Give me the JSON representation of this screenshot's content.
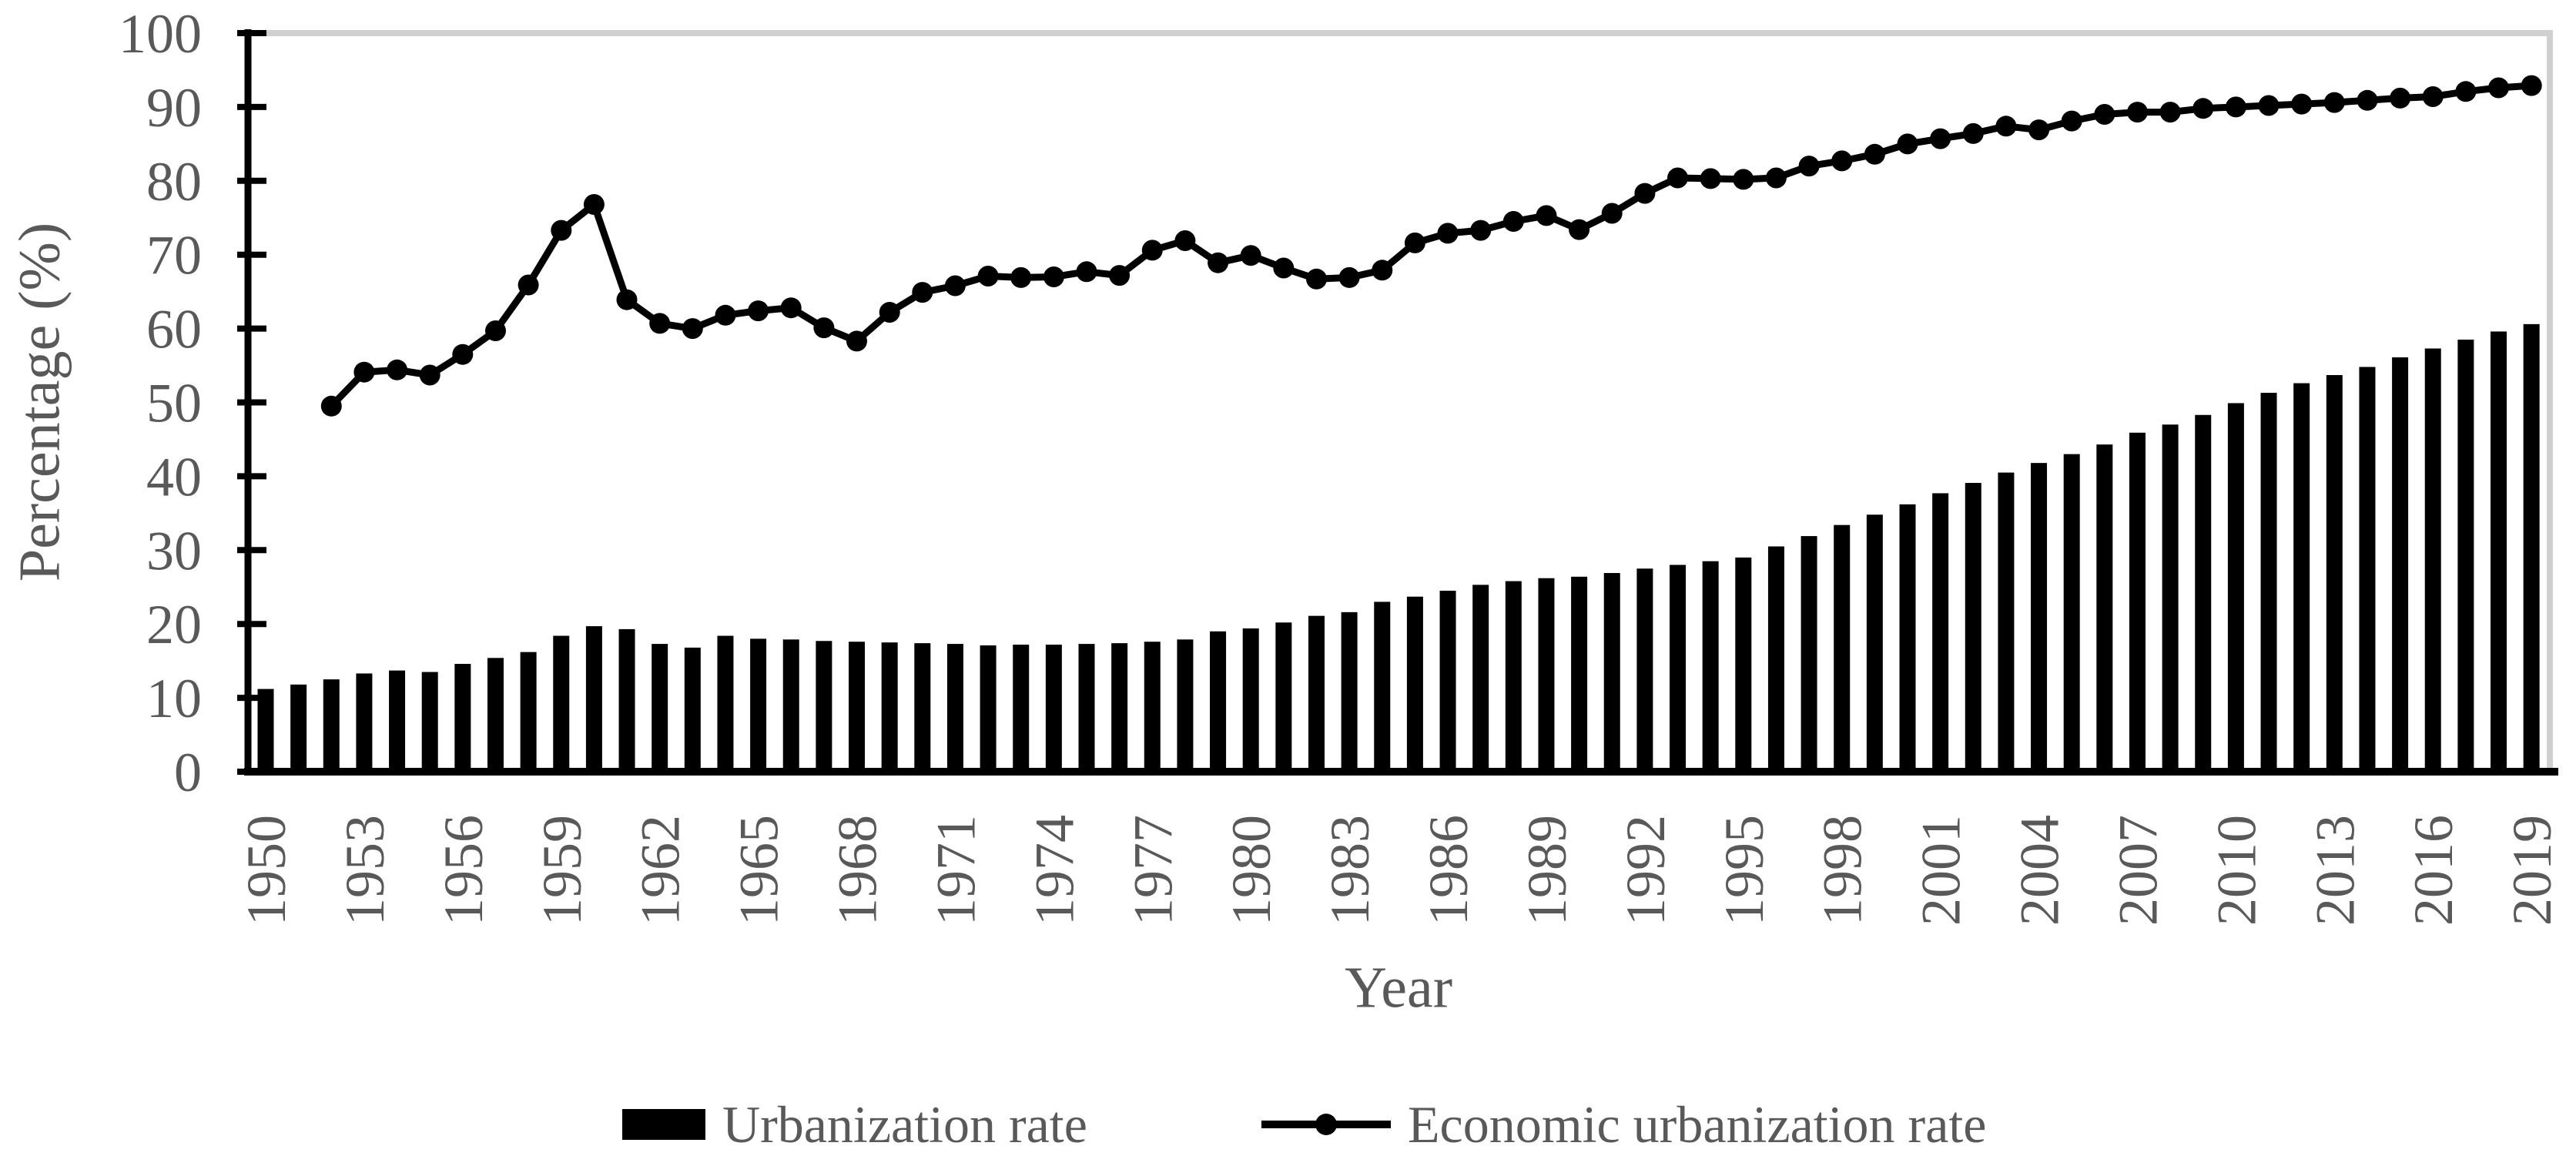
{
  "figure": {
    "background": "#ffffff"
  },
  "colors": {
    "series_bar": "#000000",
    "series_line": "#000000",
    "axis_line": "#000000",
    "tick_label_text": "#595959",
    "axis_title_text": "#595959",
    "plot_border": "#d0d0d0"
  },
  "chart_data": {
    "type": "bar",
    "combo": "bar+line",
    "title": "",
    "xlabel": "Year",
    "ylabel": "Percentage (%)",
    "ylim": [
      0,
      100
    ],
    "y_ticks": [
      0,
      10,
      20,
      30,
      40,
      50,
      60,
      70,
      80,
      90,
      100
    ],
    "grid": "off",
    "legend_position": "bottom",
    "plot_border_sides": "top-right",
    "categories": [
      1950,
      1951,
      1952,
      1953,
      1954,
      1955,
      1956,
      1957,
      1958,
      1959,
      1960,
      1961,
      1962,
      1963,
      1964,
      1965,
      1966,
      1967,
      1968,
      1969,
      1970,
      1971,
      1972,
      1973,
      1974,
      1975,
      1976,
      1977,
      1978,
      1979,
      1980,
      1981,
      1982,
      1983,
      1984,
      1985,
      1986,
      1987,
      1988,
      1989,
      1990,
      1991,
      1992,
      1993,
      1994,
      1995,
      1996,
      1997,
      1998,
      1999,
      2000,
      2001,
      2002,
      2003,
      2004,
      2005,
      2006,
      2007,
      2008,
      2009,
      2010,
      2011,
      2012,
      2013,
      2014,
      2015,
      2016,
      2017,
      2018,
      2019
    ],
    "x_tick_labels": [
      "1950",
      "1953",
      "1956",
      "1959",
      "1962",
      "1965",
      "1968",
      "1971",
      "1974",
      "1977",
      "1980",
      "1983",
      "1986",
      "1989",
      "1992",
      "1995",
      "1998",
      "2001",
      "2004",
      "2007",
      "2010",
      "2013",
      "2016",
      "2019"
    ],
    "series": [
      {
        "name": "Urbanization rate",
        "type": "bar",
        "color": "#000000",
        "values": [
          11.2,
          11.8,
          12.5,
          13.3,
          13.7,
          13.5,
          14.6,
          15.4,
          16.2,
          18.4,
          19.7,
          19.3,
          17.3,
          16.8,
          18.4,
          18.0,
          17.9,
          17.7,
          17.6,
          17.5,
          17.4,
          17.3,
          17.1,
          17.2,
          17.2,
          17.3,
          17.4,
          17.6,
          17.9,
          19.0,
          19.4,
          20.2,
          21.1,
          21.6,
          23.0,
          23.7,
          24.5,
          25.3,
          25.8,
          26.2,
          26.4,
          26.9,
          27.5,
          28.0,
          28.5,
          29.0,
          30.5,
          31.9,
          33.4,
          34.8,
          36.2,
          37.7,
          39.1,
          40.5,
          41.8,
          43.0,
          44.3,
          45.9,
          47.0,
          48.3,
          49.9,
          51.3,
          52.6,
          53.7,
          54.8,
          56.1,
          57.3,
          58.5,
          59.6,
          60.6
        ]
      },
      {
        "name": "Economic urbanization rate",
        "type": "line",
        "marker": "circle",
        "color": "#000000",
        "values": [
          null,
          null,
          49.5,
          54.1,
          54.4,
          53.7,
          56.5,
          59.7,
          65.9,
          73.3,
          76.8,
          63.9,
          60.7,
          60.0,
          61.8,
          62.4,
          62.8,
          60.1,
          58.3,
          62.2,
          64.9,
          65.8,
          67.1,
          66.9,
          67.0,
          67.7,
          67.2,
          70.6,
          71.9,
          68.9,
          69.9,
          68.2,
          66.7,
          66.9,
          67.9,
          71.6,
          72.9,
          73.3,
          74.5,
          75.3,
          73.4,
          75.6,
          78.3,
          80.4,
          80.3,
          80.2,
          80.4,
          82.0,
          82.7,
          83.6,
          85.0,
          85.7,
          86.4,
          87.4,
          86.9,
          88.1,
          89.0,
          89.3,
          89.3,
          89.8,
          90.0,
          90.2,
          90.4,
          90.6,
          90.9,
          91.2,
          91.4,
          92.1,
          92.6,
          92.9
        ]
      }
    ]
  }
}
